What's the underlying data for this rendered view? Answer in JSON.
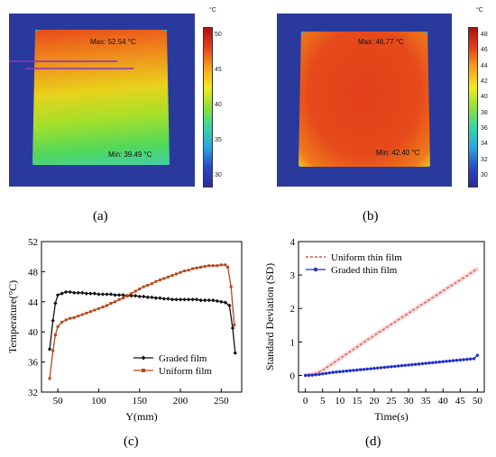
{
  "captions": [
    "(a)",
    "(b)",
    "(c)",
    "(d)"
  ],
  "thermal_a": {
    "unit": "°C",
    "max_label": "Max",
    "max_value": "52.54 °C",
    "min_label": "Min",
    "min_value": "39.49 °C",
    "colorbar_ticks": [
      "50",
      "45",
      "40",
      "35",
      "30"
    ]
  },
  "thermal_b": {
    "unit": "°C",
    "max_label": "Max",
    "max_value": "46.77 °C",
    "min_label": "Min",
    "min_value": "42.40 °C",
    "colorbar_ticks": [
      "48",
      "46",
      "44",
      "42",
      "40",
      "38",
      "36",
      "34",
      "32",
      "30"
    ]
  },
  "chart_data": [
    {
      "type": "line",
      "xlabel": "Y(mm)",
      "ylabel": "Temperature(°C)",
      "xlim": [
        30,
        275
      ],
      "ylim": [
        32,
        52
      ],
      "xticks": [
        50,
        100,
        150,
        200,
        250
      ],
      "yticks": [
        32,
        36,
        40,
        44,
        48,
        52
      ],
      "legend": "bottom-right",
      "series": [
        {
          "name": "Graded film",
          "color": "#111111",
          "marker": "diamond",
          "x": [
            40,
            44,
            47,
            50,
            55,
            60,
            65,
            70,
            75,
            80,
            85,
            90,
            95,
            100,
            105,
            110,
            115,
            120,
            125,
            130,
            135,
            140,
            145,
            150,
            155,
            160,
            165,
            170,
            175,
            180,
            185,
            190,
            195,
            200,
            205,
            210,
            215,
            220,
            225,
            230,
            235,
            240,
            245,
            250,
            255,
            260,
            264,
            267
          ],
          "y": [
            37.7,
            41.5,
            43.8,
            44.9,
            45.1,
            45.3,
            45.3,
            45.2,
            45.2,
            45.2,
            45.1,
            45.1,
            45.1,
            45.0,
            45.0,
            45.0,
            45.0,
            44.9,
            44.9,
            44.9,
            44.8,
            44.8,
            44.8,
            44.7,
            44.7,
            44.6,
            44.6,
            44.5,
            44.5,
            44.4,
            44.4,
            44.3,
            44.3,
            44.3,
            44.3,
            44.3,
            44.3,
            44.3,
            44.2,
            44.2,
            44.2,
            44.2,
            44.1,
            44.0,
            43.9,
            43.5,
            40.5,
            37.2
          ]
        },
        {
          "name": "Uniform film",
          "color": "#b5471b",
          "marker": "square",
          "x": [
            40,
            44,
            47,
            50,
            55,
            60,
            65,
            70,
            75,
            80,
            85,
            90,
            95,
            100,
            105,
            110,
            115,
            120,
            125,
            130,
            135,
            140,
            145,
            150,
            155,
            160,
            165,
            170,
            175,
            180,
            185,
            190,
            195,
            200,
            205,
            210,
            215,
            220,
            225,
            230,
            235,
            240,
            245,
            250,
            255,
            258,
            262,
            266
          ],
          "y": [
            33.8,
            37.5,
            39.6,
            40.7,
            41.3,
            41.6,
            41.8,
            41.9,
            42.1,
            42.3,
            42.5,
            42.7,
            42.9,
            43.1,
            43.3,
            43.5,
            43.8,
            44.0,
            44.3,
            44.5,
            44.8,
            45.1,
            45.4,
            45.7,
            46.0,
            46.2,
            46.4,
            46.7,
            46.9,
            47.1,
            47.3,
            47.5,
            47.7,
            47.9,
            48.1,
            48.2,
            48.4,
            48.5,
            48.6,
            48.7,
            48.8,
            48.8,
            48.8,
            48.9,
            48.9,
            48.6,
            46.0,
            40.9
          ]
        }
      ]
    },
    {
      "type": "line",
      "xlabel": "Time(s)",
      "ylabel": "Standard Deviation (SD)",
      "xlim": [
        -2,
        52
      ],
      "ylim": [
        -0.5,
        4
      ],
      "xticks": [
        0,
        5,
        10,
        15,
        20,
        25,
        30,
        35,
        40,
        45,
        50
      ],
      "yticks": [
        0,
        1,
        2,
        3,
        4
      ],
      "legend": "top-left",
      "series": [
        {
          "name": "Uniform thin film",
          "color": "#c0392b",
          "style": "dashed",
          "x": [
            0,
            1,
            2,
            3,
            4,
            5,
            6,
            7,
            8,
            9,
            10,
            11,
            12,
            13,
            14,
            15,
            16,
            17,
            18,
            19,
            20,
            21,
            22,
            23,
            24,
            25,
            26,
            27,
            28,
            29,
            30,
            31,
            32,
            33,
            34,
            35,
            36,
            37,
            38,
            39,
            40,
            41,
            42,
            43,
            44,
            45,
            46,
            47,
            48,
            49,
            50
          ],
          "y": [
            0,
            0.01,
            0.03,
            0.06,
            0.1,
            0.15,
            0.22,
            0.29,
            0.36,
            0.43,
            0.5,
            0.57,
            0.64,
            0.71,
            0.78,
            0.85,
            0.92,
            0.99,
            1.06,
            1.12,
            1.19,
            1.26,
            1.33,
            1.39,
            1.46,
            1.53,
            1.59,
            1.66,
            1.73,
            1.79,
            1.86,
            1.93,
            1.99,
            2.06,
            2.13,
            2.19,
            2.26,
            2.33,
            2.39,
            2.46,
            2.52,
            2.59,
            2.66,
            2.72,
            2.79,
            2.85,
            2.92,
            2.98,
            3.05,
            3.12,
            3.2
          ]
        },
        {
          "name": "Graded thin film",
          "color": "#1f2fcc",
          "style": "solid",
          "x": [
            0,
            1,
            2,
            3,
            4,
            5,
            6,
            7,
            8,
            9,
            10,
            11,
            12,
            13,
            14,
            15,
            16,
            17,
            18,
            19,
            20,
            21,
            22,
            23,
            24,
            25,
            26,
            27,
            28,
            29,
            30,
            31,
            32,
            33,
            34,
            35,
            36,
            37,
            38,
            39,
            40,
            41,
            42,
            43,
            44,
            45,
            46,
            47,
            48,
            49,
            50
          ],
          "y": [
            0,
            0.005,
            0.01,
            0.02,
            0.03,
            0.045,
            0.06,
            0.075,
            0.09,
            0.1,
            0.11,
            0.12,
            0.13,
            0.14,
            0.15,
            0.16,
            0.17,
            0.18,
            0.19,
            0.2,
            0.21,
            0.22,
            0.23,
            0.24,
            0.25,
            0.26,
            0.27,
            0.28,
            0.29,
            0.3,
            0.31,
            0.32,
            0.33,
            0.34,
            0.35,
            0.36,
            0.37,
            0.38,
            0.39,
            0.4,
            0.41,
            0.42,
            0.43,
            0.44,
            0.45,
            0.46,
            0.47,
            0.48,
            0.49,
            0.5,
            0.6
          ]
        }
      ]
    }
  ]
}
